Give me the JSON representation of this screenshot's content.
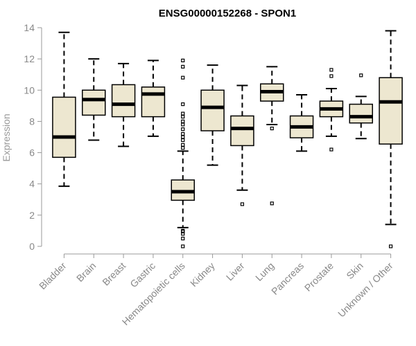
{
  "chart_data": {
    "type": "boxplot",
    "title": "ENSG00000152268 - SPON1",
    "xlabel": "",
    "ylabel": "Expression",
    "ylim": [
      0,
      14
    ],
    "yticks": [
      0,
      2,
      4,
      6,
      8,
      10,
      12,
      14
    ],
    "grid": false,
    "box_fill": "#ede7d0",
    "box_stroke": "#000000",
    "categories": [
      "Bladder",
      "Brain",
      "Breast",
      "Gastric",
      "Hematopoietic cells",
      "Kidney",
      "Liver",
      "Lung",
      "Pancreas",
      "Prostate",
      "Skin",
      "Unknown / Other"
    ],
    "boxes": [
      {
        "name": "Bladder",
        "whisker_low": 3.85,
        "q1": 5.7,
        "median": 7.0,
        "q3": 9.55,
        "whisker_high": 13.7,
        "outliers": []
      },
      {
        "name": "Brain",
        "whisker_low": 6.8,
        "q1": 8.4,
        "median": 9.4,
        "q3": 10.0,
        "whisker_high": 12.0,
        "outliers": []
      },
      {
        "name": "Breast",
        "whisker_low": 6.4,
        "q1": 8.3,
        "median": 9.1,
        "q3": 10.35,
        "whisker_high": 11.7,
        "outliers": []
      },
      {
        "name": "Gastric",
        "whisker_low": 7.05,
        "q1": 8.3,
        "median": 9.75,
        "q3": 10.2,
        "whisker_high": 11.9,
        "outliers": []
      },
      {
        "name": "Hematopoietic cells",
        "whisker_low": 1.2,
        "q1": 2.95,
        "median": 3.5,
        "q3": 4.25,
        "whisker_high": 6.1,
        "outliers": [
          0.0,
          0.5,
          0.8,
          0.95,
          1.0,
          6.3,
          6.5,
          6.8,
          7.0,
          7.2,
          7.5,
          7.8,
          8.0,
          8.3,
          8.5,
          9.1,
          10.8,
          11.5,
          11.9
        ]
      },
      {
        "name": "Kidney",
        "whisker_low": 5.2,
        "q1": 7.4,
        "median": 8.9,
        "q3": 10.0,
        "whisker_high": 11.6,
        "outliers": []
      },
      {
        "name": "Liver",
        "whisker_low": 3.6,
        "q1": 6.45,
        "median": 7.55,
        "q3": 8.35,
        "whisker_high": 10.3,
        "outliers": [
          2.7
        ]
      },
      {
        "name": "Lung",
        "whisker_low": 7.8,
        "q1": 9.3,
        "median": 9.9,
        "q3": 10.4,
        "whisker_high": 11.5,
        "outliers": [
          2.75,
          7.55
        ]
      },
      {
        "name": "Pancreas",
        "whisker_low": 6.1,
        "q1": 6.95,
        "median": 7.65,
        "q3": 8.35,
        "whisker_high": 9.7,
        "outliers": []
      },
      {
        "name": "Prostate",
        "whisker_low": 7.05,
        "q1": 8.3,
        "median": 8.8,
        "q3": 9.3,
        "whisker_high": 10.1,
        "outliers": [
          6.2,
          10.9,
          11.3
        ]
      },
      {
        "name": "Skin",
        "whisker_low": 6.9,
        "q1": 7.9,
        "median": 8.3,
        "q3": 9.1,
        "whisker_high": 9.6,
        "outliers": [
          10.95
        ]
      },
      {
        "name": "Unknown / Other",
        "whisker_low": 1.4,
        "q1": 6.55,
        "median": 9.25,
        "q3": 10.8,
        "whisker_high": 13.8,
        "outliers": [
          0.0
        ]
      }
    ]
  }
}
